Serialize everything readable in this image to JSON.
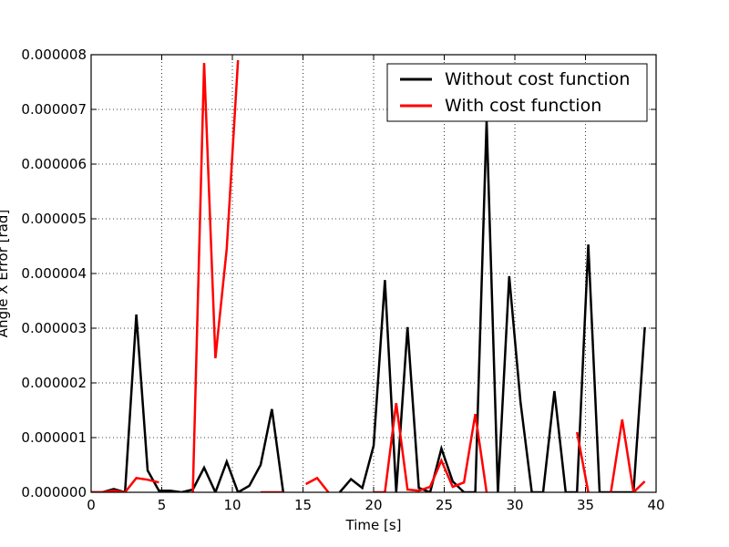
{
  "chart_data": {
    "type": "line",
    "title": "",
    "xlabel": "Time [s]",
    "ylabel": "Angle X Error [rad]",
    "xlim": [
      0,
      40
    ],
    "ylim": [
      0,
      8e-06
    ],
    "xticks": [
      0,
      5,
      10,
      15,
      20,
      25,
      30,
      35,
      40
    ],
    "xtick_labels": [
      "0",
      "5",
      "10",
      "15",
      "20",
      "25",
      "30",
      "35",
      "40"
    ],
    "yticks": [
      0,
      1e-06,
      2e-06,
      3e-06,
      4e-06,
      5e-06,
      6e-06,
      7e-06,
      8e-06
    ],
    "ytick_labels": [
      "0.000000",
      "0.000001",
      "0.000002",
      "0.000003",
      "0.000004",
      "0.000005",
      "0.000006",
      "0.000007",
      "0.000008"
    ],
    "grid": true,
    "legend_position": "top-right",
    "series": [
      {
        "name": "Without cost function",
        "color": "#000000",
        "segments": [
          [
            [
              0,
              0
            ],
            [
              0.8,
              0
            ],
            [
              1.6,
              6e-08
            ],
            [
              2.4,
              0
            ],
            [
              3.2,
              3.25e-06
            ],
            [
              4.0,
              4e-07
            ],
            [
              4.8,
              3e-08
            ],
            [
              5.6,
              3e-08
            ],
            [
              6.4,
              0
            ],
            [
              7.2,
              5e-08
            ],
            [
              8.0,
              4.5e-07
            ],
            [
              8.8,
              0
            ],
            [
              9.6,
              5.6e-07
            ],
            [
              10.4,
              0
            ],
            [
              11.2,
              1.2e-07
            ],
            [
              12.0,
              5e-07
            ],
            [
              12.8,
              1.52e-06
            ],
            [
              13.6,
              0
            ]
          ],
          [
            [
              17.6,
              0
            ],
            [
              18.4,
              2.4e-07
            ],
            [
              19.2,
              8e-08
            ],
            [
              20.0,
              8.5e-07
            ],
            [
              20.8,
              3.88e-06
            ],
            [
              21.6,
              0
            ],
            [
              22.4,
              3.02e-06
            ],
            [
              23.2,
              8e-08
            ],
            [
              24.0,
              0
            ],
            [
              24.8,
              8e-07
            ],
            [
              25.6,
              2e-07
            ],
            [
              26.4,
              0
            ],
            [
              27.2,
              0
            ],
            [
              28.0,
              6.8e-06
            ],
            [
              28.8,
              0
            ],
            [
              29.6,
              3.95e-06
            ],
            [
              30.4,
              1.65e-06
            ],
            [
              31.2,
              0
            ],
            [
              32.0,
              0
            ],
            [
              32.8,
              1.85e-06
            ],
            [
              33.6,
              0
            ],
            [
              34.4,
              0
            ],
            [
              35.2,
              4.53e-06
            ],
            [
              36.0,
              0
            ],
            [
              36.8,
              0
            ],
            [
              37.6,
              0
            ],
            [
              38.4,
              0
            ],
            [
              39.2,
              3.02e-06
            ]
          ]
        ]
      },
      {
        "name": "With cost function",
        "color": "#ff0000",
        "segments": [
          [
            [
              0,
              0
            ],
            [
              0.8,
              0
            ],
            [
              1.6,
              3e-08
            ],
            [
              2.4,
              0
            ],
            [
              3.2,
              2.6e-07
            ],
            [
              4.0,
              2.3e-07
            ],
            [
              4.8,
              1.8e-07
            ]
          ],
          [
            [
              7.2,
              0
            ],
            [
              8.0,
              7.85e-06
            ],
            [
              8.8,
              2.45e-06
            ],
            [
              9.6,
              4.45e-06
            ],
            [
              10.4,
              7.9e-06
            ]
          ],
          [
            [
              12.0,
              0
            ],
            [
              12.8,
              0
            ],
            [
              13.6,
              0
            ]
          ],
          [
            [
              15.2,
              1.5e-07
            ],
            [
              16.0,
              2.6e-07
            ],
            [
              16.8,
              0
            ]
          ],
          [
            [
              20.0,
              0
            ],
            [
              20.8,
              0
            ],
            [
              21.6,
              1.63e-06
            ],
            [
              22.4,
              5e-08
            ],
            [
              23.2,
              3e-08
            ],
            [
              24.0,
              1e-07
            ],
            [
              24.8,
              5.8e-07
            ],
            [
              25.6,
              1e-07
            ],
            [
              26.4,
              1.8e-07
            ],
            [
              27.2,
              1.43e-06
            ],
            [
              28.0,
              0
            ]
          ],
          [
            [
              34.4,
              1.1e-06
            ],
            [
              35.2,
              0
            ]
          ],
          [
            [
              36.8,
              0
            ],
            [
              37.6,
              1.33e-06
            ],
            [
              38.4,
              0
            ],
            [
              39.2,
              2e-07
            ]
          ]
        ]
      }
    ]
  }
}
